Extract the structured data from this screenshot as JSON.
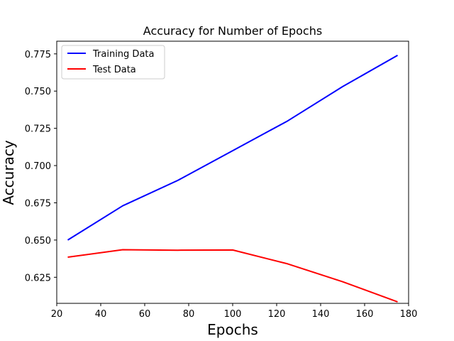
{
  "chart_data": {
    "type": "line",
    "title": "Accuracy for Number of Epochs",
    "xlabel": "Epochs",
    "ylabel": "Accuracy",
    "xlim": [
      20,
      180
    ],
    "ylim": [
      0.6075,
      0.7835
    ],
    "x_ticks": [
      20,
      40,
      60,
      80,
      100,
      120,
      140,
      160,
      180
    ],
    "x_tick_labels": [
      "20",
      "40",
      "60",
      "80",
      "100",
      "120",
      "140",
      "160",
      "180"
    ],
    "y_ticks": [
      0.625,
      0.65,
      0.675,
      0.7,
      0.725,
      0.75,
      0.775
    ],
    "y_tick_labels": [
      "0.625",
      "0.650",
      "0.675",
      "0.700",
      "0.725",
      "0.750",
      "0.775"
    ],
    "grid": false,
    "legend_position": "top-left",
    "x": [
      25,
      50,
      75,
      100,
      125,
      150,
      175
    ],
    "series": [
      {
        "name": "Training Data",
        "color": "#0000ff",
        "values": [
          0.65,
          0.673,
          0.69,
          0.71,
          0.73,
          0.753,
          0.774
        ]
      },
      {
        "name": "Test Data",
        "color": "#ff0000",
        "values": [
          0.6385,
          0.6435,
          0.6432,
          0.6433,
          0.634,
          0.622,
          0.6085
        ]
      }
    ]
  }
}
